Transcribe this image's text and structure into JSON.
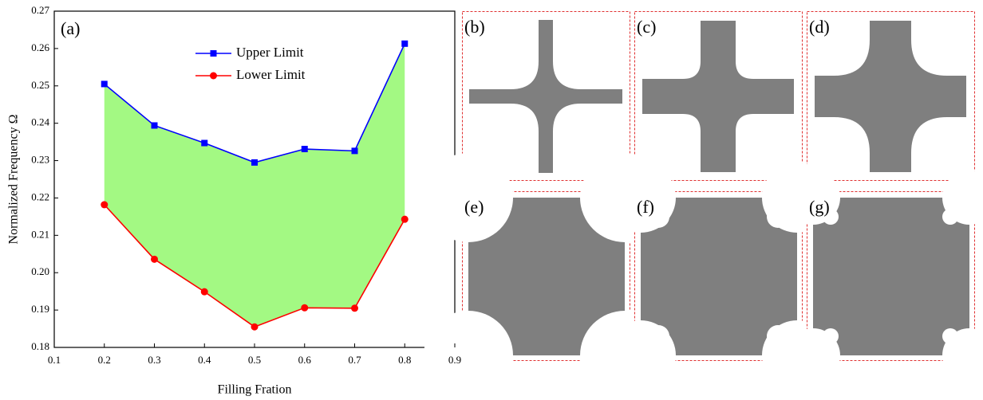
{
  "chart_data": {
    "type": "line",
    "annotation": "(a)",
    "x_label": "Filling Fration",
    "y_label": "Normalized Frequency  Ω",
    "x": [
      0.2,
      0.3,
      0.4,
      0.5,
      0.6,
      0.7,
      0.8
    ],
    "series": [
      {
        "name": "Upper Limit",
        "color": "#0000ff",
        "marker": "square",
        "values": [
          0.2505,
          0.2394,
          0.2347,
          0.2295,
          0.2331,
          0.2326,
          0.2613
        ]
      },
      {
        "name": "Lower Limit",
        "color": "#ff0000",
        "marker": "circle",
        "values": [
          0.2182,
          0.2036,
          0.1949,
          0.1855,
          0.1906,
          0.1905,
          0.2143
        ]
      }
    ],
    "fill_between_color": "#a3f983",
    "xlim": [
      0.1,
      0.9
    ],
    "xticks": [
      0.1,
      0.2,
      0.3,
      0.4,
      0.5,
      0.6,
      0.7,
      0.8,
      0.9
    ],
    "ylim": [
      0.18,
      0.27
    ],
    "yticks": [
      0.18,
      0.19,
      {
        "value": 0.2,
        "label": "0.20"
      },
      0.21,
      0.22,
      0.23,
      0.24,
      0.25,
      0.26,
      {
        "value": 0.27,
        "label": "0.27"
      }
    ],
    "legend": "upper-center"
  },
  "panel_labels": [
    "(b)",
    "(c)",
    "(d)",
    "(e)",
    "(f)",
    "(g)"
  ]
}
